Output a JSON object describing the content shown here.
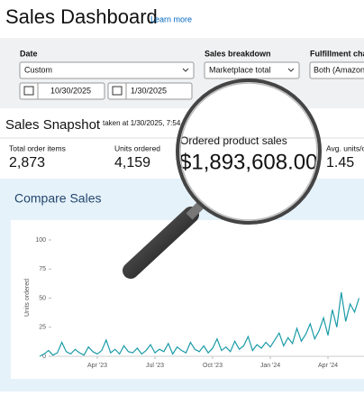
{
  "header": {
    "title": "Sales Dashboard",
    "link": "Learn more"
  },
  "filters": {
    "date": {
      "label": "Date",
      "range": "Custom",
      "start": "10/30/2025",
      "end": "1/30/2025"
    },
    "breakdown": {
      "label": "Sales breakdown",
      "value": "Marketplace total"
    },
    "fulfillment": {
      "label": "Fulfillment chan",
      "value": "Both (Amazon"
    }
  },
  "snapshot": {
    "title": "Sales Snapshot",
    "timestamp": "taken at 1/30/2025, 7:54",
    "metrics": [
      {
        "label": "Total order items",
        "value": "2,873"
      },
      {
        "label": "Units ordered",
        "value": "4,159"
      },
      {
        "label": "Ordered product sales",
        "value": "$1,893,608.00"
      },
      {
        "label": "Avg. units/o",
        "value": "1.45"
      }
    ]
  },
  "compare_sales": {
    "title": "Compare Sales",
    "chart_data": {
      "type": "line",
      "y_label": "Units ordered",
      "color": "#1a9ba8",
      "values": [
        0,
        2,
        5,
        1,
        3,
        12,
        4,
        2,
        6,
        3,
        1,
        8,
        4,
        2,
        5,
        14,
        3,
        6,
        2,
        9,
        4,
        3,
        7,
        2,
        5,
        10,
        3,
        6,
        4,
        11,
        2,
        8,
        5,
        3,
        12,
        6,
        4,
        9,
        3,
        7,
        15,
        5,
        8,
        4,
        13,
        6,
        9,
        17,
        5,
        10,
        7,
        12,
        8,
        14,
        20,
        9,
        16,
        11,
        24,
        13,
        19,
        28,
        15,
        22,
        33,
        18,
        40,
        25,
        55,
        30,
        45,
        38,
        50
      ],
      "xlim": [
        0,
        73
      ],
      "xticks": [
        {
          "value": 13,
          "label": "Apr '23"
        },
        {
          "value": 26,
          "label": "Jul '23"
        },
        {
          "value": 39,
          "label": "Oct '23"
        },
        {
          "value": 52,
          "label": "Jan '24"
        },
        {
          "value": 65,
          "label": "Apr '24"
        }
      ],
      "ylim": [
        0,
        100
      ],
      "yticks": [
        0,
        25,
        50,
        75,
        100
      ]
    }
  }
}
